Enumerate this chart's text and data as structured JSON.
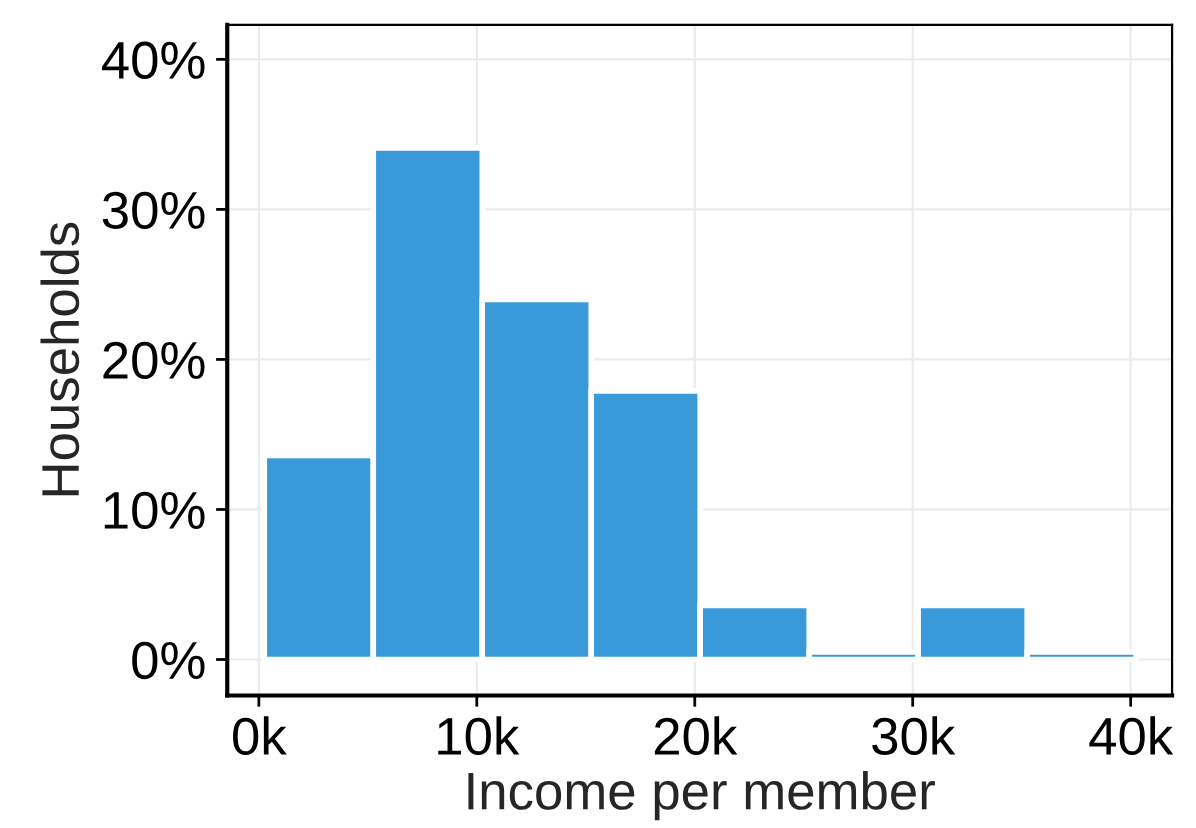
{
  "chart_data": {
    "type": "histogram",
    "xlabel": "Income per member",
    "ylabel": "Households",
    "bins": [
      250,
      5250,
      10250,
      15250,
      20250,
      25250,
      30250,
      35250,
      40250
    ],
    "values": [
      13.6,
      34.1,
      24,
      17.9,
      3.6,
      0.5,
      3.6,
      0.5
    ],
    "color": "#3a9ad9",
    "xlim": [
      -1450,
      41900
    ],
    "xticks": [
      {
        "value": 0,
        "label": "0k"
      },
      {
        "value": 10000,
        "label": "10k"
      },
      {
        "value": 20000,
        "label": "20k"
      },
      {
        "value": 30000,
        "label": "30k"
      },
      {
        "value": 40000,
        "label": "40k"
      }
    ],
    "ylim": [
      -2.4,
      42.3
    ],
    "yticks": [
      {
        "value": 0,
        "label": "0%"
      },
      {
        "value": 10,
        "label": "10%"
      },
      {
        "value": 20,
        "label": "20%"
      },
      {
        "value": 30,
        "label": "30%"
      },
      {
        "value": 40,
        "label": "40%"
      }
    ],
    "grid": true
  }
}
